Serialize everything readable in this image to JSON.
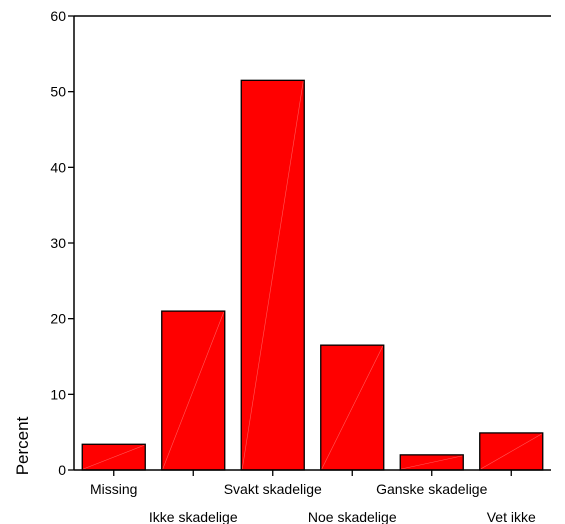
{
  "chart_data": {
    "type": "bar",
    "categories": [
      "Missing",
      "Ikke skadelige",
      "Svakt skadelige",
      "Noe skadelige",
      "Ganske skadelige",
      "Vet ikke"
    ],
    "values": [
      3.4,
      21.0,
      51.5,
      16.5,
      2.0,
      4.9
    ],
    "ylabel": "Percent",
    "xlabel": "",
    "ylim": [
      0,
      60
    ],
    "yticks": [
      0,
      10,
      20,
      30,
      40,
      50,
      60
    ],
    "grid": false,
    "bar_color": "#ff0000",
    "bar_edge_color": "#000000",
    "axis_color": "#000000"
  }
}
